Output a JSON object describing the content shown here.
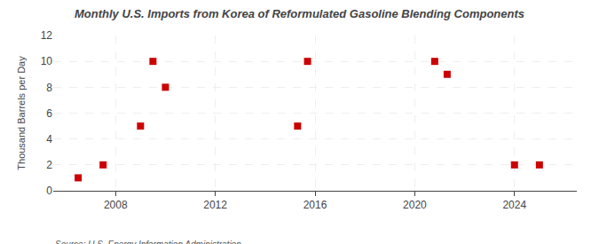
{
  "chart_data": {
    "type": "scatter",
    "title": "Monthly U.S. Imports from Korea of Reformulated Gasoline Blending Components",
    "ylabel": "Thousand Barrels per Day",
    "annotations": [
      "Source: U.S. Energy Information Administration"
    ],
    "x": [
      2006.5,
      2007.5,
      2009.0,
      2009.5,
      2010.0,
      2015.3,
      2015.7,
      2020.8,
      2021.3,
      2024.0,
      2025.0
    ],
    "values": [
      1,
      2,
      5,
      10,
      8,
      5,
      10,
      10,
      9,
      2,
      2
    ],
    "color": "#cc0000",
    "marker": "square",
    "xlim": [
      2005.5,
      2026.5
    ],
    "ylim": [
      0,
      12
    ],
    "xticks": [
      2008,
      2012,
      2016,
      2020,
      2024
    ],
    "yticks": [
      0,
      2,
      4,
      6,
      8,
      10,
      12
    ],
    "grid": true
  }
}
